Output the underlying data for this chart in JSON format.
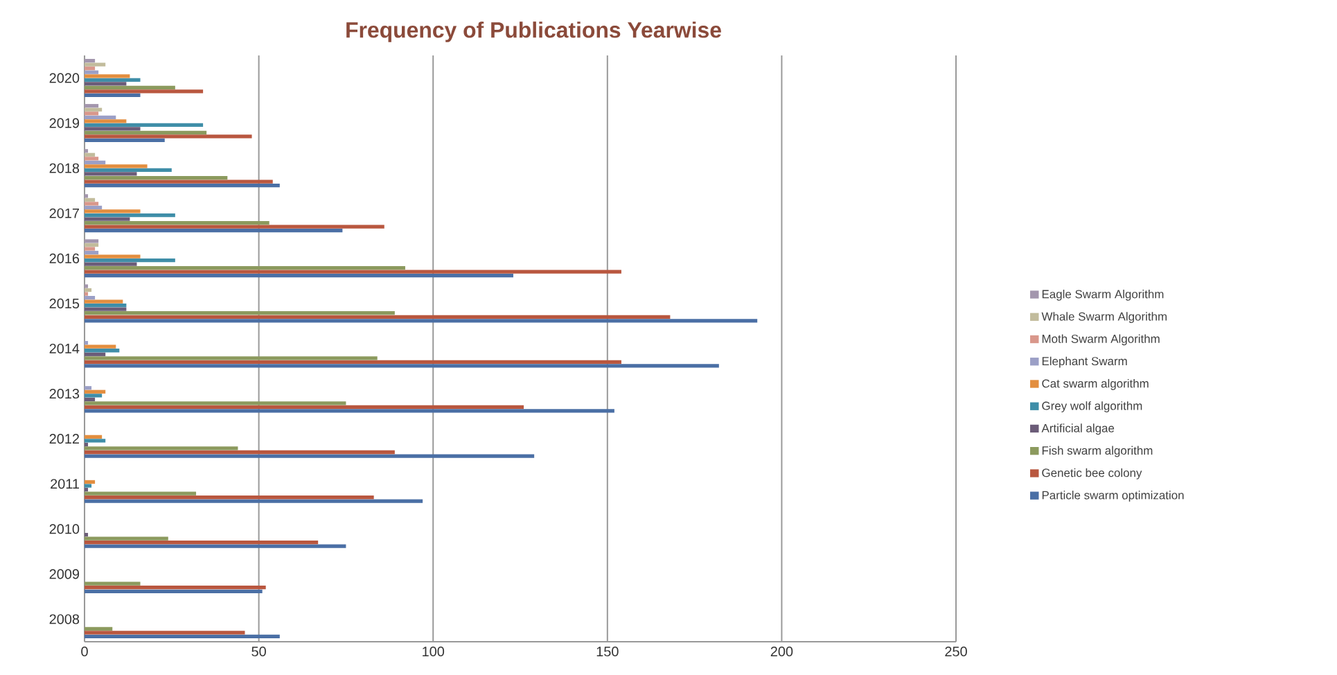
{
  "chart_data": {
    "type": "bar",
    "orientation": "horizontal",
    "title": "Frequency of Publications Yearwise",
    "categories": [
      "2020",
      "2019",
      "2018",
      "2017",
      "2016",
      "2015",
      "2014",
      "2013",
      "2012",
      "2011",
      "2010",
      "2009",
      "2008"
    ],
    "series": [
      {
        "name": "Particle swarm optimization",
        "color": "#4a6fa5",
        "values": [
          16,
          23,
          56,
          74,
          123,
          193,
          182,
          152,
          129,
          97,
          75,
          51,
          56
        ]
      },
      {
        "name": "Genetic bee colony",
        "color": "#b9573f",
        "values": [
          34,
          48,
          54,
          86,
          154,
          168,
          154,
          126,
          89,
          83,
          67,
          52,
          46
        ]
      },
      {
        "name": "Fish swarm algorithm",
        "color": "#8c9a5e",
        "values": [
          26,
          35,
          41,
          53,
          92,
          89,
          84,
          75,
          44,
          32,
          24,
          16,
          8
        ]
      },
      {
        "name": "Artificial algae",
        "color": "#6b5c78",
        "values": [
          12,
          16,
          15,
          13,
          15,
          12,
          6,
          3,
          1,
          1,
          1,
          0,
          0
        ]
      },
      {
        "name": "Grey wolf algorithm",
        "color": "#3f8ea8",
        "values": [
          16,
          34,
          25,
          26,
          26,
          12,
          10,
          5,
          6,
          2,
          0,
          0,
          0
        ]
      },
      {
        "name": "Cat swarm algorithm",
        "color": "#e38e3f",
        "values": [
          13,
          12,
          18,
          16,
          16,
          11,
          9,
          6,
          5,
          3,
          0,
          0,
          0
        ]
      },
      {
        "name": "Elephant Swarm",
        "color": "#9b9fc6",
        "values": [
          4,
          9,
          6,
          5,
          4,
          3,
          1,
          2,
          0,
          0,
          0,
          0,
          0
        ]
      },
      {
        "name": "Moth Swarm Algorithm",
        "color": "#d9978b",
        "values": [
          3,
          4,
          4,
          4,
          3,
          1,
          0,
          0,
          0,
          0,
          0,
          0,
          0
        ]
      },
      {
        "name": "Whale Swarm Algorithm",
        "color": "#c2bc9c",
        "values": [
          6,
          5,
          3,
          3,
          4,
          2,
          0,
          0,
          0,
          0,
          0,
          0,
          0
        ]
      },
      {
        "name": "Eagle Swarm Algorithm",
        "color": "#a396ad",
        "values": [
          3,
          4,
          1,
          1,
          4,
          1,
          0,
          0,
          0,
          0,
          0,
          0,
          0
        ]
      }
    ],
    "xlim": [
      0,
      250
    ],
    "xticks": [
      0,
      50,
      100,
      150,
      200,
      250
    ],
    "grid": "x",
    "legend": "right"
  }
}
